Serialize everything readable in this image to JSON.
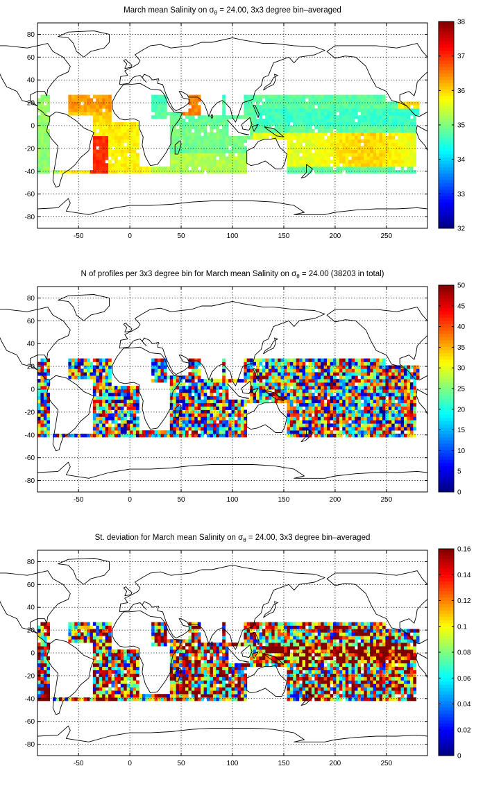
{
  "chart_data": [
    {
      "type": "heatmap",
      "title_prefix": "March mean Salinity on ",
      "title_symbol": "σ",
      "title_subscript": "θ",
      "title_suffix": " = 24.00, 3x3 degree bin–averaged",
      "x_ticks": [
        "-50",
        "0",
        "50",
        "100",
        "150",
        "200",
        "250"
      ],
      "y_ticks": [
        "80",
        "60",
        "40",
        "20",
        "0",
        "-20",
        "-40",
        "-60",
        "-80"
      ],
      "xlim": [
        -90,
        290
      ],
      "ylim": [
        -90,
        90
      ],
      "grid": true,
      "colorbar": {
        "min": 32,
        "max": 38,
        "ticks": [
          "38",
          "37",
          "36",
          "35",
          "34",
          "33",
          "32"
        ]
      },
      "colormap": "jet"
    },
    {
      "type": "heatmap",
      "title_prefix": "N of profiles per 3x3 degree bin for March mean Salinity on ",
      "title_symbol": "σ",
      "title_subscript": "θ",
      "title_suffix": " = 24.00 (38203 in total)",
      "x_ticks": [
        "-50",
        "0",
        "50",
        "100",
        "150",
        "200",
        "250"
      ],
      "y_ticks": [
        "80",
        "60",
        "40",
        "20",
        "0",
        "-20",
        "-40",
        "-60",
        "-80"
      ],
      "xlim": [
        -90,
        290
      ],
      "ylim": [
        -90,
        90
      ],
      "grid": true,
      "colorbar": {
        "min": 0,
        "max": 50,
        "ticks": [
          "50",
          "45",
          "40",
          "35",
          "30",
          "25",
          "20",
          "15",
          "10",
          "5",
          "0"
        ]
      },
      "colormap": "jet"
    },
    {
      "type": "heatmap",
      "title_prefix": "St. deviation for March mean Salinity on ",
      "title_symbol": "σ",
      "title_subscript": "θ",
      "title_suffix": " = 24.00, 3x3 degree bin–averaged",
      "x_ticks": [
        "-50",
        "0",
        "50",
        "100",
        "150",
        "200",
        "250"
      ],
      "y_ticks": [
        "80",
        "60",
        "40",
        "20",
        "0",
        "-20",
        "-40",
        "-60",
        "-80"
      ],
      "xlim": [
        -90,
        290
      ],
      "ylim": [
        -90,
        90
      ],
      "grid": true,
      "colorbar": {
        "min": 0,
        "max": 0.16,
        "ticks": [
          "0.16",
          "0.14",
          "0.12",
          "0.1",
          "0.08",
          "0.06",
          "0.04",
          "0.02",
          "0"
        ]
      },
      "colormap": "jet"
    }
  ]
}
